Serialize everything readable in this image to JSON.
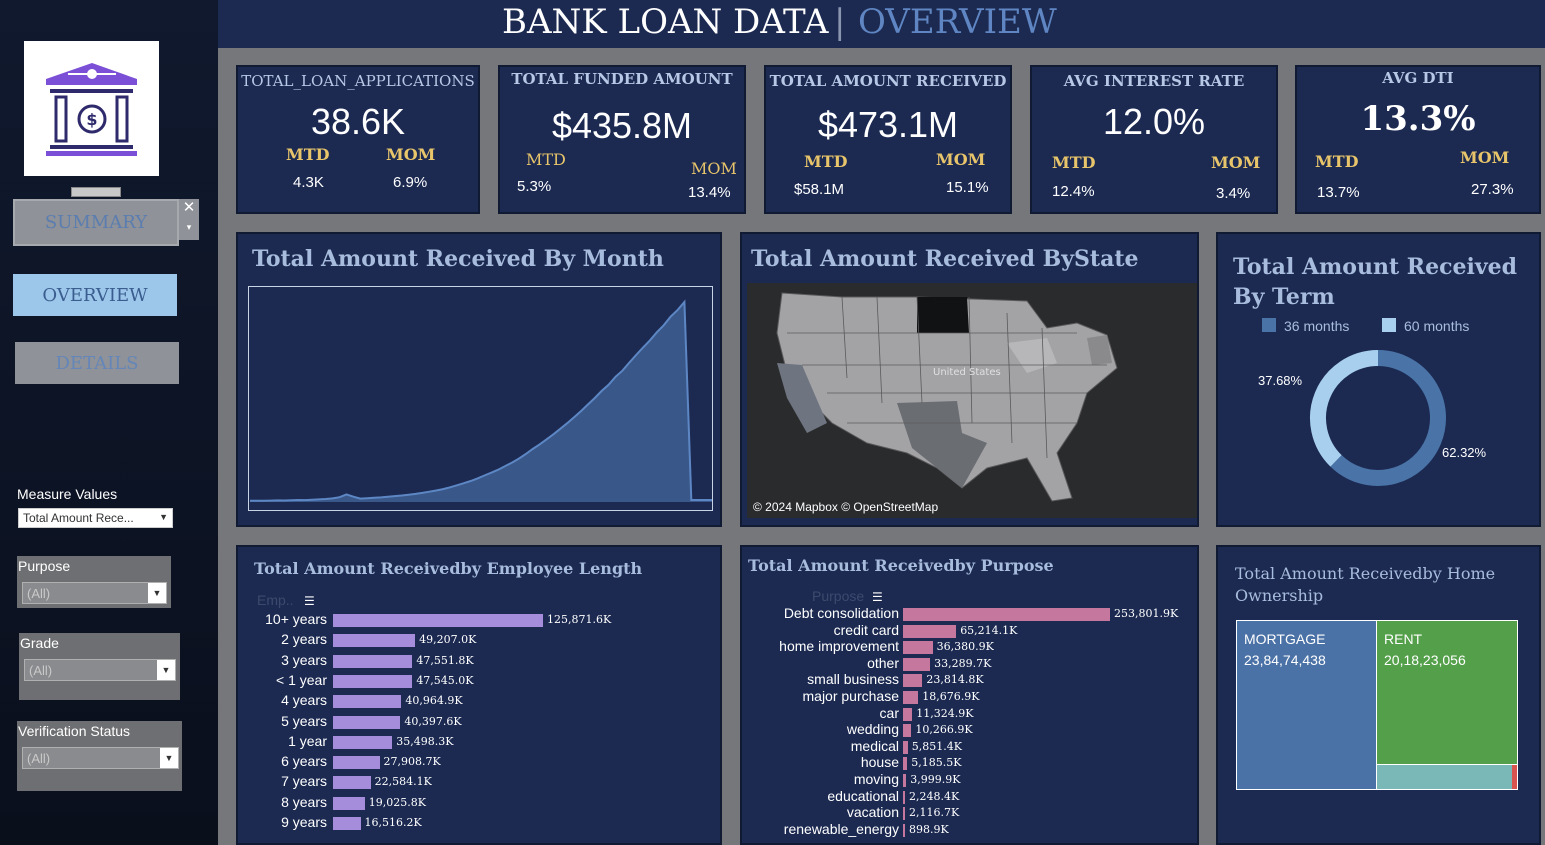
{
  "title": {
    "main": "BANK LOAN DATA",
    "separator": "|",
    "sub": "OVERVIEW"
  },
  "nav": {
    "summary": "SUMMARY",
    "close": "✕",
    "overview": "OVERVIEW",
    "details": "DETAILS"
  },
  "filters": {
    "measure_label": "Measure Values",
    "measure_value": "Total Amount Rece...",
    "purpose_label": "Purpose",
    "purpose_value": "(All)",
    "grade_label": "Grade",
    "grade_value": "(All)",
    "verification_label": "Verification Status",
    "verification_value": "(All)"
  },
  "kpis": [
    {
      "title": "TOTAL_LOAN_APPLICATIONS",
      "value": "38.6K",
      "mtd_label": "MTD",
      "mom_label": "MOM",
      "mtd": "4.3K",
      "mom": "6.9%"
    },
    {
      "title": "TOTAL FUNDED AMOUNT",
      "value": "$435.8M",
      "mtd_label": "MTD",
      "mom_label": "MOM",
      "mtd": "5.3%",
      "mom": "13.4%"
    },
    {
      "title": "TOTAL AMOUNT RECEIVED",
      "value": "$473.1M",
      "mtd_label": "MTD",
      "mom_label": "MOM",
      "mtd": "$58.1M",
      "mom": "15.1%"
    },
    {
      "title": "AVG INTEREST RATE",
      "value": "12.0%",
      "mtd_label": "MTD",
      "mom_label": "MOM",
      "mtd": "12.4%",
      "mom": "3.4%"
    },
    {
      "title": "AVG DTI",
      "value": "13.3%",
      "mtd_label": "MTD",
      "mom_label": "MOM",
      "mtd": "13.7%",
      "mom": "27.3%"
    }
  ],
  "panels": {
    "month_title": "Total Amount Received By Month",
    "state_title": "Total Amount Received ByState",
    "map_attribution": "© 2024 Mapbox © OpenStreetMap",
    "map_label": "United States",
    "term_title_line1": "Total Amount Received",
    "term_title_line2": "By Term",
    "emp_title": "Total Amount Receivedby Employee Length",
    "emp_axis": "Emp..",
    "purpose_title": "Total Amount Receivedby Purpose",
    "purpose_axis": "Purpose",
    "home_title_line1": "Total Amount Receivedby Home",
    "home_title_line2": "Ownership"
  },
  "colors": {
    "area": "#4f74a8",
    "emp_bar": "#a58ddb",
    "purpose_bar": "#c5779e",
    "donut_36": "#4a74a8",
    "donut_60": "#a8d0ee",
    "mortgage": "#4b72a6",
    "rent": "#54a04a",
    "other": "#7ab8b8"
  },
  "chart_data": [
    {
      "type": "area",
      "title": "Total Amount Received By Month",
      "values": [
        1.2,
        1.3,
        1.2,
        1.4,
        1.6,
        1.5,
        1.8,
        2.0,
        1.9,
        2.2,
        2.6,
        3.0,
        3.6,
        4.8,
        7.5,
        5.2,
        3.4,
        3.8,
        4.2,
        4.6,
        5.2,
        5.8,
        6.4,
        7.2,
        8.0,
        9.0,
        10.2,
        11.4,
        12.8,
        14.6,
        16.5,
        18.6,
        20.8,
        23.4,
        26.2,
        29.0,
        32.0,
        35.5,
        39.0,
        43.0,
        47.5,
        52.5,
        57.0,
        62.0,
        67.0,
        72.5,
        78.0,
        84.0,
        90.0,
        96.5,
        103.0,
        110.0,
        116.0,
        124.0,
        130.0,
        138.0,
        145.5,
        153.0,
        160.0,
        168.0,
        175.0,
        183.5,
        190.0,
        198.0,
        2.0,
        2.0,
        2.0,
        2.0
      ],
      "ylim": [
        0,
        200
      ]
    },
    {
      "type": "pie",
      "title_line1": "Total Amount Received",
      "title_line2": "By Term",
      "categories": [
        "36 months",
        "60 months"
      ],
      "values": [
        62.32,
        37.68
      ],
      "labels": [
        "62.32%",
        "37.68%"
      ]
    },
    {
      "type": "bar",
      "title": "Total Amount Receivedby Employee Length",
      "categories": [
        "10+ years",
        "2 years",
        "3 years",
        "< 1 year",
        "4 years",
        "5 years",
        "1 year",
        "6 years",
        "7 years",
        "8 years",
        "9 years"
      ],
      "values": [
        125871.6,
        49207.0,
        47551.8,
        47545.0,
        40964.9,
        40397.6,
        35498.3,
        27908.7,
        22584.1,
        19025.8,
        16516.2
      ],
      "labels": [
        "125,871.6K",
        "49,207.0K",
        "47,551.8K",
        "47,545.0K",
        "40,964.9K",
        "40,397.6K",
        "35,498.3K",
        "27,908.7K",
        "22,584.1K",
        "19,025.8K",
        "16,516.2K"
      ]
    },
    {
      "type": "bar",
      "title": "Total Amount Receivedby Purpose",
      "categories": [
        "Debt consolidation",
        "credit card",
        "home improvement",
        "other",
        "small business",
        "major purchase",
        "car",
        "wedding",
        "medical",
        "house",
        "moving",
        "educational",
        "vacation",
        "renewable_energy"
      ],
      "values": [
        253801.9,
        65214.1,
        36380.9,
        33289.7,
        23814.8,
        18676.9,
        11324.9,
        10266.9,
        5851.4,
        5185.5,
        3999.9,
        2248.4,
        2116.7,
        898.9
      ],
      "labels": [
        "253,801.9K",
        "65,214.1K",
        "36,380.9K",
        "33,289.7K",
        "23,814.8K",
        "18,676.9K",
        "11,324.9K",
        "10,266.9K",
        "5,851.4K",
        "5,185.5K",
        "3,999.9K",
        "2,248.4K",
        "2,116.7K",
        "898.9K"
      ]
    },
    {
      "type": "treemap",
      "title": "Total Amount Receivedby Home Ownership",
      "categories": [
        "MORTGAGE",
        "RENT"
      ],
      "labels": [
        "23,84,74,438",
        "20,18,23,056"
      ]
    }
  ]
}
